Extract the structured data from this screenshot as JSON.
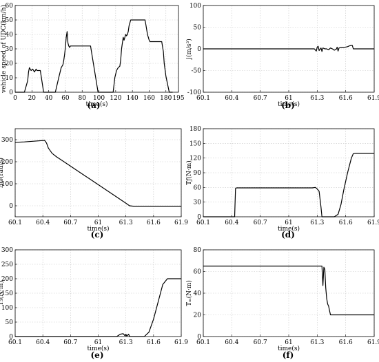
{
  "chart_data": [
    {
      "id": "a",
      "panel_label": "(a)",
      "type": "line",
      "xlabel": "time(s)",
      "ylabel": "vehicle speed of UDC(km/h)",
      "xlim": [
        0,
        195
      ],
      "ylim": [
        0,
        60
      ],
      "xticks": [
        0,
        20,
        40,
        60,
        80,
        100,
        120,
        140,
        160,
        180,
        195
      ],
      "yticks": [
        0,
        10,
        20,
        30,
        40,
        50,
        60
      ],
      "grid": true,
      "series": [
        {
          "x": [
            0,
            11,
            15,
            16,
            17,
            19,
            21,
            23,
            25,
            26,
            27,
            30,
            34,
            48,
            52,
            55,
            57,
            58,
            59,
            60,
            61,
            62,
            63,
            64,
            65,
            66,
            67,
            69,
            75,
            80,
            83,
            87,
            90,
            99,
            117,
            119,
            121,
            123,
            125,
            126,
            127,
            129,
            130,
            131,
            132,
            133,
            134,
            135,
            136,
            137,
            138,
            139,
            140,
            141,
            142,
            145,
            150,
            155,
            156,
            158,
            160,
            161,
            162,
            163,
            165,
            170,
            175,
            177,
            178,
            180,
            184,
            188
          ],
          "y": [
            0,
            0,
            8,
            14,
            17,
            15,
            16,
            14,
            16,
            15,
            15,
            15,
            0,
            0,
            10,
            17,
            19,
            22,
            26,
            31,
            38,
            42,
            34,
            32,
            31,
            32,
            32,
            32,
            32,
            32,
            32,
            32,
            32,
            0,
            0,
            10,
            15,
            17,
            18,
            22,
            30,
            38,
            36,
            38,
            40,
            39,
            40,
            42,
            46,
            48,
            50,
            50,
            50,
            50,
            50,
            50,
            50,
            50,
            47,
            40,
            36,
            35,
            35,
            35,
            35,
            35,
            35,
            28,
            20,
            11,
            0,
            0
          ]
        }
      ]
    },
    {
      "id": "b",
      "panel_label": "(b)",
      "type": "line",
      "xlabel": "time(s)",
      "ylabel": "j(m/s³)",
      "xlim": [
        60.1,
        61.9
      ],
      "ylim": [
        -100,
        100
      ],
      "xticks": [
        60.1,
        60.4,
        60.7,
        61,
        61.3,
        61.6,
        61.9
      ],
      "yticks": [
        -100,
        -50,
        0,
        50,
        100
      ],
      "grid": true,
      "series": [
        {
          "x": [
            60.1,
            61.27,
            61.29,
            61.3,
            61.31,
            61.32,
            61.34,
            61.35,
            61.36,
            61.38,
            61.4,
            61.42,
            61.44,
            61.46,
            61.48,
            61.5,
            61.51,
            61.52,
            61.53,
            61.55,
            61.58,
            61.62,
            61.64,
            61.66,
            61.67,
            61.68,
            61.7,
            61.9
          ],
          "y": [
            0,
            0,
            -5,
            4,
            6,
            -4,
            2,
            -6,
            2,
            0,
            0,
            -2,
            2,
            0,
            -3,
            -1,
            4,
            -5,
            2,
            3,
            3,
            5,
            7,
            8,
            8,
            0,
            0,
            0
          ]
        }
      ]
    },
    {
      "id": "c",
      "panel_label": "(c)",
      "type": "line",
      "xlabel": "time(s)",
      "ylabel": "Δω(rad/s)",
      "xlim": [
        60.1,
        61.9
      ],
      "ylim": [
        -50,
        350
      ],
      "xticks": [
        60.1,
        60.4,
        60.7,
        61,
        61.3,
        61.6,
        61.9
      ],
      "yticks": [
        0,
        100,
        200,
        300
      ],
      "grid": true,
      "series": [
        {
          "x": [
            60.1,
            60.2,
            60.3,
            60.42,
            60.44,
            60.46,
            60.5,
            60.55,
            60.6,
            60.7,
            60.8,
            60.9,
            61,
            61.1,
            61.2,
            61.3,
            61.34,
            61.38,
            61.45,
            61.6,
            61.9
          ],
          "y": [
            288,
            290,
            293,
            297,
            285,
            262,
            238,
            222,
            208,
            180,
            152,
            124,
            96,
            68,
            40,
            12,
            0,
            -2,
            -2,
            -2,
            -2
          ]
        }
      ]
    },
    {
      "id": "d",
      "panel_label": "(d)",
      "type": "line",
      "xlabel": "time(s)",
      "ylabel": "Tƒ(N·m)",
      "xlim": [
        60.1,
        61.9
      ],
      "ylim": [
        0,
        180
      ],
      "xticks": [
        60.1,
        60.4,
        60.7,
        61,
        61.3,
        61.6,
        61.9
      ],
      "yticks": [
        0,
        30,
        60,
        90,
        120,
        150,
        180
      ],
      "grid": true,
      "series": [
        {
          "x": [
            60.1,
            60.43,
            60.44,
            60.45,
            61.25,
            61.28,
            61.3,
            61.32,
            61.34,
            61.35,
            61.37,
            61.48,
            61.52,
            61.55,
            61.58,
            61.62,
            61.66,
            61.68,
            61.7,
            61.9
          ],
          "y": [
            0,
            0,
            58,
            59,
            59,
            60,
            57,
            52,
            20,
            0,
            0,
            0,
            5,
            25,
            55,
            90,
            120,
            129,
            130,
            130
          ]
        }
      ]
    },
    {
      "id": "e",
      "panel_label": "(e)",
      "type": "line",
      "xlabel": "time(s)",
      "ylabel": "T₃(N·m)",
      "xlim": [
        60.1,
        61.9
      ],
      "ylim": [
        0,
        300
      ],
      "xticks": [
        60.1,
        60.4,
        60.7,
        61,
        61.3,
        61.6,
        61.9
      ],
      "yticks": [
        0,
        50,
        100,
        150,
        200,
        250,
        300
      ],
      "grid": true,
      "series": [
        {
          "x": [
            60.1,
            61.2,
            61.24,
            61.27,
            61.29,
            61.3,
            61.31,
            61.33,
            61.34,
            61.5,
            61.55,
            61.6,
            61.65,
            61.7,
            61.75,
            61.85,
            61.9
          ],
          "y": [
            0,
            0,
            8,
            10,
            3,
            8,
            2,
            8,
            0,
            0,
            15,
            60,
            120,
            180,
            200,
            200,
            200
          ]
        }
      ]
    },
    {
      "id": "f",
      "panel_label": "(f)",
      "type": "line",
      "xlabel": "time(s)",
      "ylabel": "Tₘ(N·m)",
      "xlim": [
        60.1,
        61.9
      ],
      "ylim": [
        0,
        80
      ],
      "xticks": [
        60.1,
        60.4,
        60.7,
        61,
        61.3,
        61.6,
        61.9
      ],
      "yticks": [
        0,
        20,
        40,
        60,
        80
      ],
      "grid": true,
      "series": [
        {
          "x": [
            60.1,
            61.35,
            61.36,
            61.37,
            61.38,
            61.39,
            61.4,
            61.41,
            61.42,
            61.43,
            61.44,
            61.46,
            61.9
          ],
          "y": [
            65,
            65,
            47,
            64,
            62,
            45,
            35,
            30,
            28,
            24,
            20,
            20,
            20
          ]
        }
      ]
    }
  ]
}
